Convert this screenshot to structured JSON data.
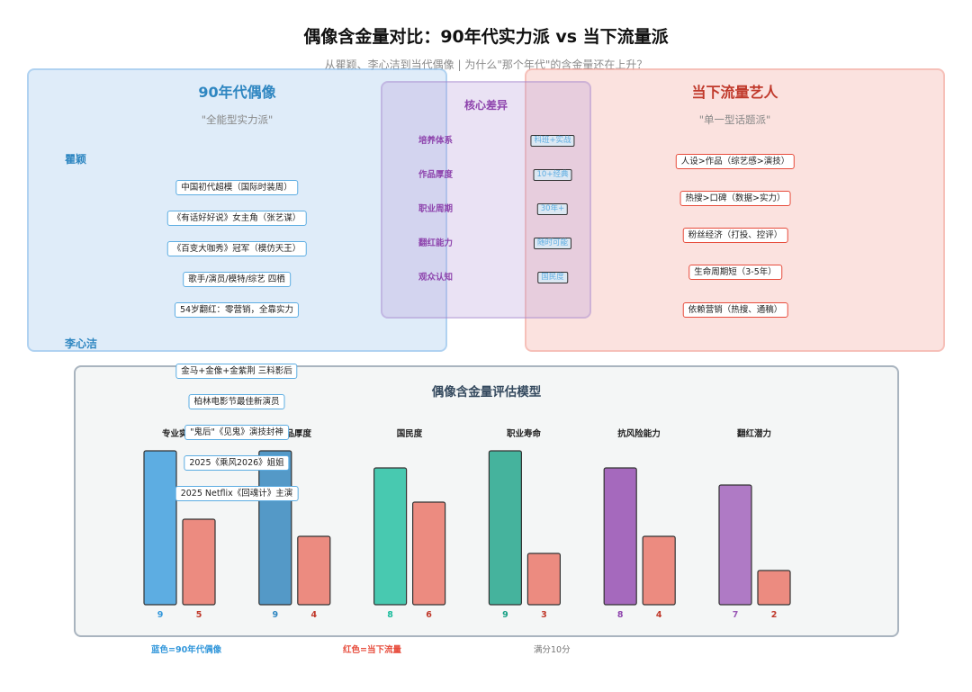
{
  "title": "偶像含金量对比：90年代实力派 vs 当下流量派",
  "subtitle": "从瞿颖、李心洁到当代偶像 | 为什么\"那个年代\"的含金量还在上升？",
  "left_panel": {
    "title": "90年代偶像",
    "subtitle": "\"全能型实力派\"",
    "persons": [
      {
        "name": "瞿颖",
        "tags": [
          "中国初代超模（国际时装周）",
          "《有话好好说》女主角（张艺谋）",
          "《百变大咖秀》冠军（模仿天王）",
          "歌手/演员/模特/综艺 四栖",
          "54岁翻红：零营销，全靠实力"
        ]
      },
      {
        "name": "李心洁",
        "tags": [
          "金马+金像+金紫荆 三料影后",
          "柏林电影节最佳新演员",
          "\"鬼后\"《见鬼》演技封神",
          "2025《乘风2026》姐姐",
          "2025 Netflix《回魂计》主演"
        ]
      }
    ]
  },
  "mid_panel": {
    "title": "核心差异",
    "rows": [
      {
        "label": "培养体系",
        "value": "科班+实战"
      },
      {
        "label": "作品厚度",
        "value": "10+经典"
      },
      {
        "label": "职业周期",
        "value": "30年+"
      },
      {
        "label": "翻红能力",
        "value": "随时可能"
      },
      {
        "label": "观众认知",
        "value": "国民度"
      }
    ]
  },
  "right_panel": {
    "title": "当下流量艺人",
    "subtitle": "\"单一型话题派\"",
    "tags": [
      "人设>作品（综艺感>演技）",
      "热搜>口碑（数据>实力）",
      "粉丝经济（打投、控评）",
      "生命周期短（3-5年）",
      "依赖营销（热搜、通稿）"
    ]
  },
  "model": {
    "title": "偶像含金量评估模型",
    "legend_blue": "蓝色=90年代偶像",
    "legend_red": "红色=当下流量",
    "scale_note": "满分10分"
  },
  "chart_data": {
    "type": "bar",
    "title": "偶像含金量评估模型",
    "categories": [
      "专业实力",
      "作品厚度",
      "国民度",
      "职业寿命",
      "抗风险能力",
      "翻红潜力"
    ],
    "series": [
      {
        "name": "蓝色=90年代偶像",
        "values": [
          9,
          9,
          8,
          9,
          8,
          7
        ]
      },
      {
        "name": "红色=当下流量",
        "values": [
          5,
          4,
          6,
          3,
          4,
          2
        ]
      }
    ],
    "ylim": [
      0,
      10
    ],
    "colors_90s": [
      "#5dade2",
      "#5499c7",
      "#48c9b0",
      "#45b39d",
      "#a569bd",
      "#af7ac5"
    ],
    "label_colors_90s": [
      "#3498db",
      "#2e86c1",
      "#1abc9c",
      "#16a085",
      "#8e44ad",
      "#9b59b6"
    ],
    "color_current": "#ec8b80",
    "label_color_current": "#c0392b"
  }
}
